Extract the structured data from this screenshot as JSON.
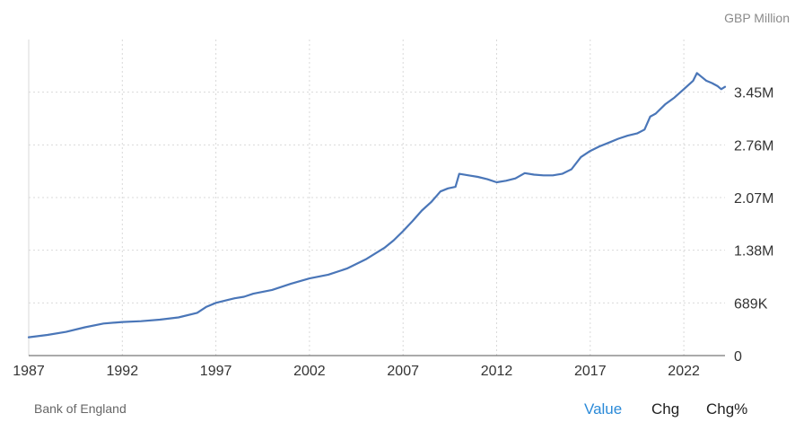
{
  "header": {
    "unit_label": "GBP Million"
  },
  "footer": {
    "source": "Bank of England",
    "tabs": [
      {
        "label": "Value",
        "active": true
      },
      {
        "label": "Chg",
        "active": false
      },
      {
        "label": "Chg%",
        "active": false
      }
    ]
  },
  "colors": {
    "line": "#4a76b8",
    "grid": "#d9d9d9",
    "axis": "#333333",
    "active_tab": "#2b8ad8"
  },
  "chart_data": {
    "type": "line",
    "title": "",
    "xlabel": "",
    "ylabel": "GBP Million",
    "grid": true,
    "y_axis_position": "right",
    "xlim": [
      1987,
      2024.2
    ],
    "ylim": [
      0,
      4140000
    ],
    "x_ticks": [
      {
        "value": 1987,
        "label": "1987"
      },
      {
        "value": 1992,
        "label": "1992"
      },
      {
        "value": 1997,
        "label": "1997"
      },
      {
        "value": 2002,
        "label": "2002"
      },
      {
        "value": 2007,
        "label": "2007"
      },
      {
        "value": 2012,
        "label": "2012"
      },
      {
        "value": 2017,
        "label": "2017"
      },
      {
        "value": 2022,
        "label": "2022"
      }
    ],
    "y_ticks": [
      {
        "value": 0,
        "label": "0"
      },
      {
        "value": 689000,
        "label": "689K"
      },
      {
        "value": 1380000,
        "label": "1.38M"
      },
      {
        "value": 2070000,
        "label": "2.07M"
      },
      {
        "value": 2760000,
        "label": "2.76M"
      },
      {
        "value": 3450000,
        "label": "3.45M"
      }
    ],
    "series": [
      {
        "x": [
          1987.0,
          1988.0,
          1989.0,
          1990.0,
          1991.0,
          1992.0,
          1993.0,
          1994.0,
          1995.0,
          1996.0,
          1996.5,
          1997.0,
          1998.0,
          1998.5,
          1999.0,
          2000.0,
          2001.0,
          2002.0,
          2003.0,
          2004.0,
          2005.0,
          2006.0,
          2006.5,
          2007.0,
          2007.5,
          2008.0,
          2008.5,
          2009.0,
          2009.4,
          2009.8,
          2010.0,
          2010.5,
          2011.0,
          2011.5,
          2012.0,
          2012.5,
          2013.0,
          2013.5,
          2014.0,
          2014.5,
          2015.0,
          2015.5,
          2016.0,
          2016.5,
          2017.0,
          2017.5,
          2018.0,
          2018.5,
          2019.0,
          2019.5,
          2019.9,
          2020.2,
          2020.5,
          2021.0,
          2021.5,
          2022.0,
          2022.5,
          2022.7,
          2022.9,
          2023.2,
          2023.5,
          2023.8,
          2024.0,
          2024.2
        ],
        "y": [
          240000,
          270000,
          310000,
          370000,
          420000,
          440000,
          450000,
          470000,
          500000,
          560000,
          640000,
          690000,
          750000,
          770000,
          810000,
          860000,
          940000,
          1010000,
          1060000,
          1140000,
          1260000,
          1410000,
          1510000,
          1630000,
          1760000,
          1900000,
          2010000,
          2150000,
          2190000,
          2210000,
          2380000,
          2360000,
          2340000,
          2310000,
          2270000,
          2290000,
          2320000,
          2390000,
          2370000,
          2360000,
          2360000,
          2380000,
          2440000,
          2600000,
          2680000,
          2740000,
          2790000,
          2840000,
          2880000,
          2910000,
          2960000,
          3130000,
          3170000,
          3290000,
          3380000,
          3490000,
          3600000,
          3700000,
          3660000,
          3600000,
          3570000,
          3530000,
          3490000,
          3520000
        ]
      }
    ]
  }
}
